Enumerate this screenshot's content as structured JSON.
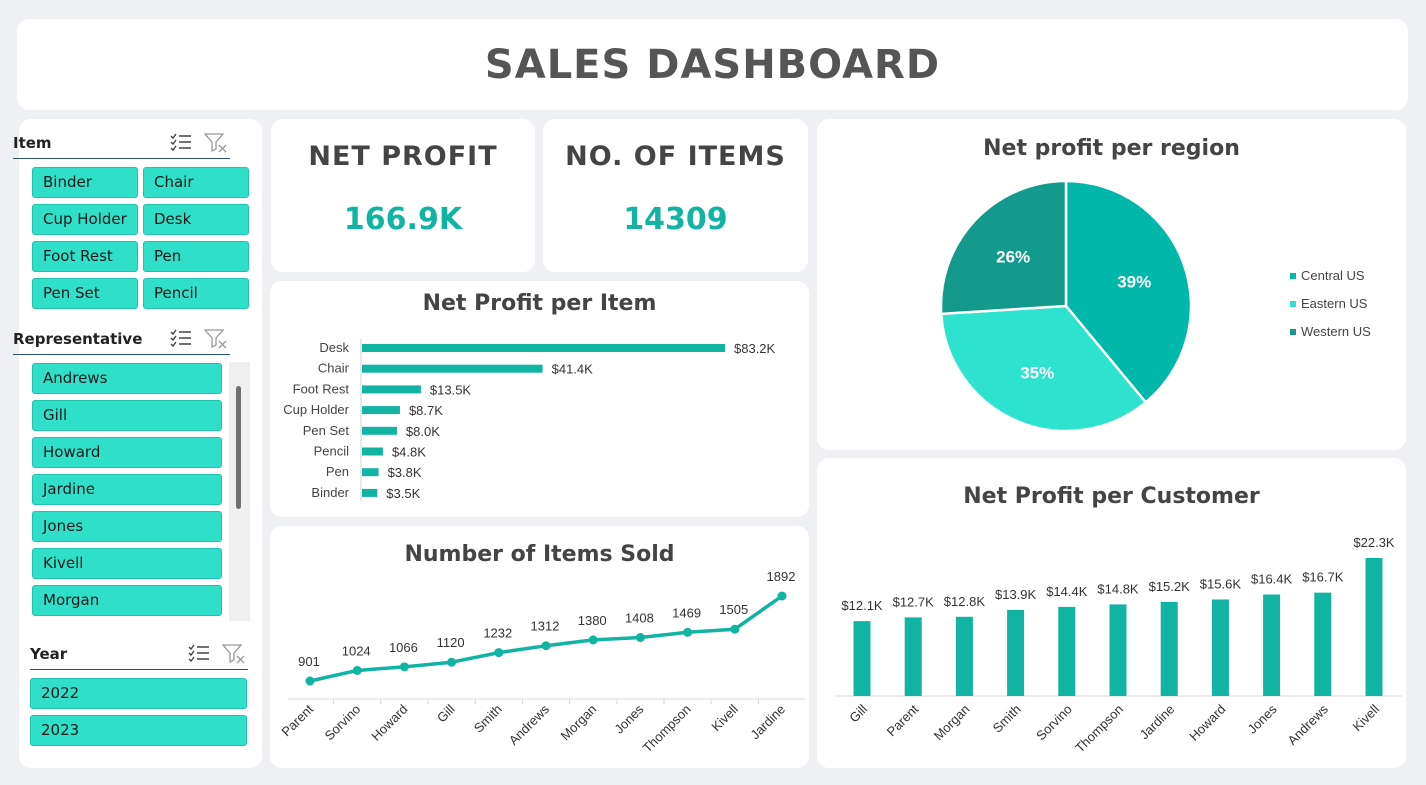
{
  "header": {
    "title": "SALES DASHBOARD"
  },
  "slicers": {
    "item": {
      "title": "Item",
      "options": [
        "Binder",
        "Chair",
        "Cup Holder",
        "Desk",
        "Foot Rest",
        "Pen",
        "Pen Set",
        "Pencil"
      ]
    },
    "representative": {
      "title": "Representative",
      "options": [
        "Andrews",
        "Gill",
        "Howard",
        "Jardine",
        "Jones",
        "Kivell",
        "Morgan"
      ]
    },
    "year": {
      "title": "Year",
      "options": [
        "2022",
        "2023"
      ]
    }
  },
  "kpis": {
    "net_profit": {
      "title": "NET PROFIT",
      "value": "166.9K"
    },
    "items": {
      "title": "NO. OF ITEMS",
      "value": "14309"
    }
  },
  "colors": {
    "accent": "#11b3a3",
    "chip": "#2fdfca",
    "pie_central": "#00b8a9",
    "pie_eastern": "#2de2ce",
    "pie_western": "#139a8c"
  },
  "chart_data": [
    {
      "type": "bar",
      "orientation": "horizontal",
      "title": "Net Profit per Item",
      "categories": [
        "Desk",
        "Chair",
        "Foot Rest",
        "Cup Holder",
        "Pen Set",
        "Pencil",
        "Pen",
        "Binder"
      ],
      "values": [
        83.2,
        41.4,
        13.5,
        8.7,
        8.0,
        4.8,
        3.8,
        3.5
      ],
      "labels": [
        "$83.2K",
        "$41.4K",
        "$13.5K",
        "$8.7K",
        "$8.0K",
        "$4.8K",
        "$3.8K",
        "$3.5K"
      ]
    },
    {
      "type": "line",
      "title": "Number of Items Sold",
      "categories": [
        "Parent",
        "Sorvino",
        "Howard",
        "Gill",
        "Smith",
        "Andrews",
        "Morgan",
        "Jones",
        "Thompson",
        "Kivell",
        "Jardine"
      ],
      "values": [
        901,
        1024,
        1066,
        1120,
        1232,
        1312,
        1380,
        1408,
        1469,
        1505,
        1892
      ]
    },
    {
      "type": "pie",
      "title": "Net profit per region",
      "slices": [
        {
          "name": "Central US",
          "value": 39,
          "label": "39%"
        },
        {
          "name": "Eastern US",
          "value": 35,
          "label": "35%"
        },
        {
          "name": "Western US",
          "value": 26,
          "label": "26%"
        }
      ],
      "legend": "right"
    },
    {
      "type": "bar",
      "title": "Net Profit per Customer",
      "categories": [
        "Gill",
        "Parent",
        "Morgan",
        "Smith",
        "Sorvino",
        "Thompson",
        "Jardine",
        "Howard",
        "Jones",
        "Andrews",
        "Kivell"
      ],
      "values": [
        12.1,
        12.7,
        12.8,
        13.9,
        14.4,
        14.8,
        15.2,
        15.6,
        16.4,
        16.7,
        22.3
      ],
      "labels": [
        "$12.1K",
        "$12.7K",
        "$12.8K",
        "$13.9K",
        "$14.4K",
        "$14.8K",
        "$15.2K",
        "$15.6K",
        "$16.4K",
        "$16.7K",
        "$22.3K"
      ]
    }
  ]
}
